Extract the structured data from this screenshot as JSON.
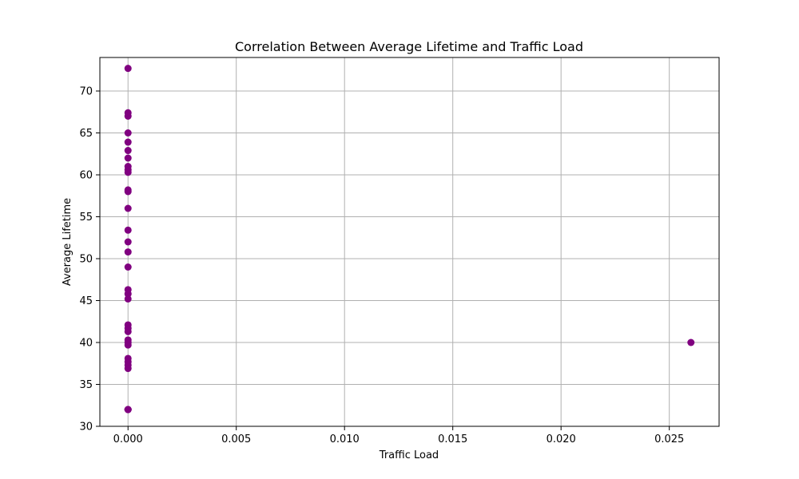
{
  "chart_data": {
    "type": "scatter",
    "title": "Correlation Between Average Lifetime and Traffic Load",
    "xlabel": "Traffic Load",
    "ylabel": "Average Lifetime",
    "xlim": [
      -0.0013,
      0.0273
    ],
    "ylim": [
      30,
      74
    ],
    "x_ticks": [
      0.0,
      0.005,
      0.01,
      0.015,
      0.02,
      0.025
    ],
    "x_tick_labels": [
      "0.000",
      "0.005",
      "0.010",
      "0.015",
      "0.020",
      "0.025"
    ],
    "y_ticks": [
      30,
      35,
      40,
      45,
      50,
      55,
      60,
      65,
      70
    ],
    "y_tick_labels": [
      "30",
      "35",
      "40",
      "45",
      "50",
      "55",
      "60",
      "65",
      "70"
    ],
    "grid": true,
    "legend": "none",
    "marker_color": "#800080",
    "grid_color": "#b0b0b0",
    "series": [
      {
        "x": [
          0.0,
          0.0,
          0.0,
          0.0,
          0.0,
          0.0,
          0.0,
          0.0,
          0.0,
          0.0,
          0.0,
          0.0,
          0.0,
          0.0,
          0.0,
          0.0,
          0.0,
          0.0,
          0.0,
          0.0,
          0.0,
          0.0,
          0.0,
          0.0,
          0.0,
          0.0,
          0.0,
          0.0,
          0.0,
          0.0,
          0.0,
          0.0,
          0.0,
          0.0,
          0.026
        ],
        "y": [
          72.7,
          67.4,
          67.0,
          65.0,
          63.9,
          62.9,
          62.0,
          61.0,
          60.6,
          60.3,
          58.2,
          58.0,
          56.0,
          53.4,
          52.0,
          50.8,
          49.0,
          46.3,
          45.8,
          45.2,
          42.1,
          41.7,
          41.3,
          40.3,
          40.0,
          39.7,
          38.1,
          37.7,
          37.3,
          36.9,
          32.0,
          32.0,
          32.0,
          32.0,
          40.0
        ]
      }
    ]
  }
}
